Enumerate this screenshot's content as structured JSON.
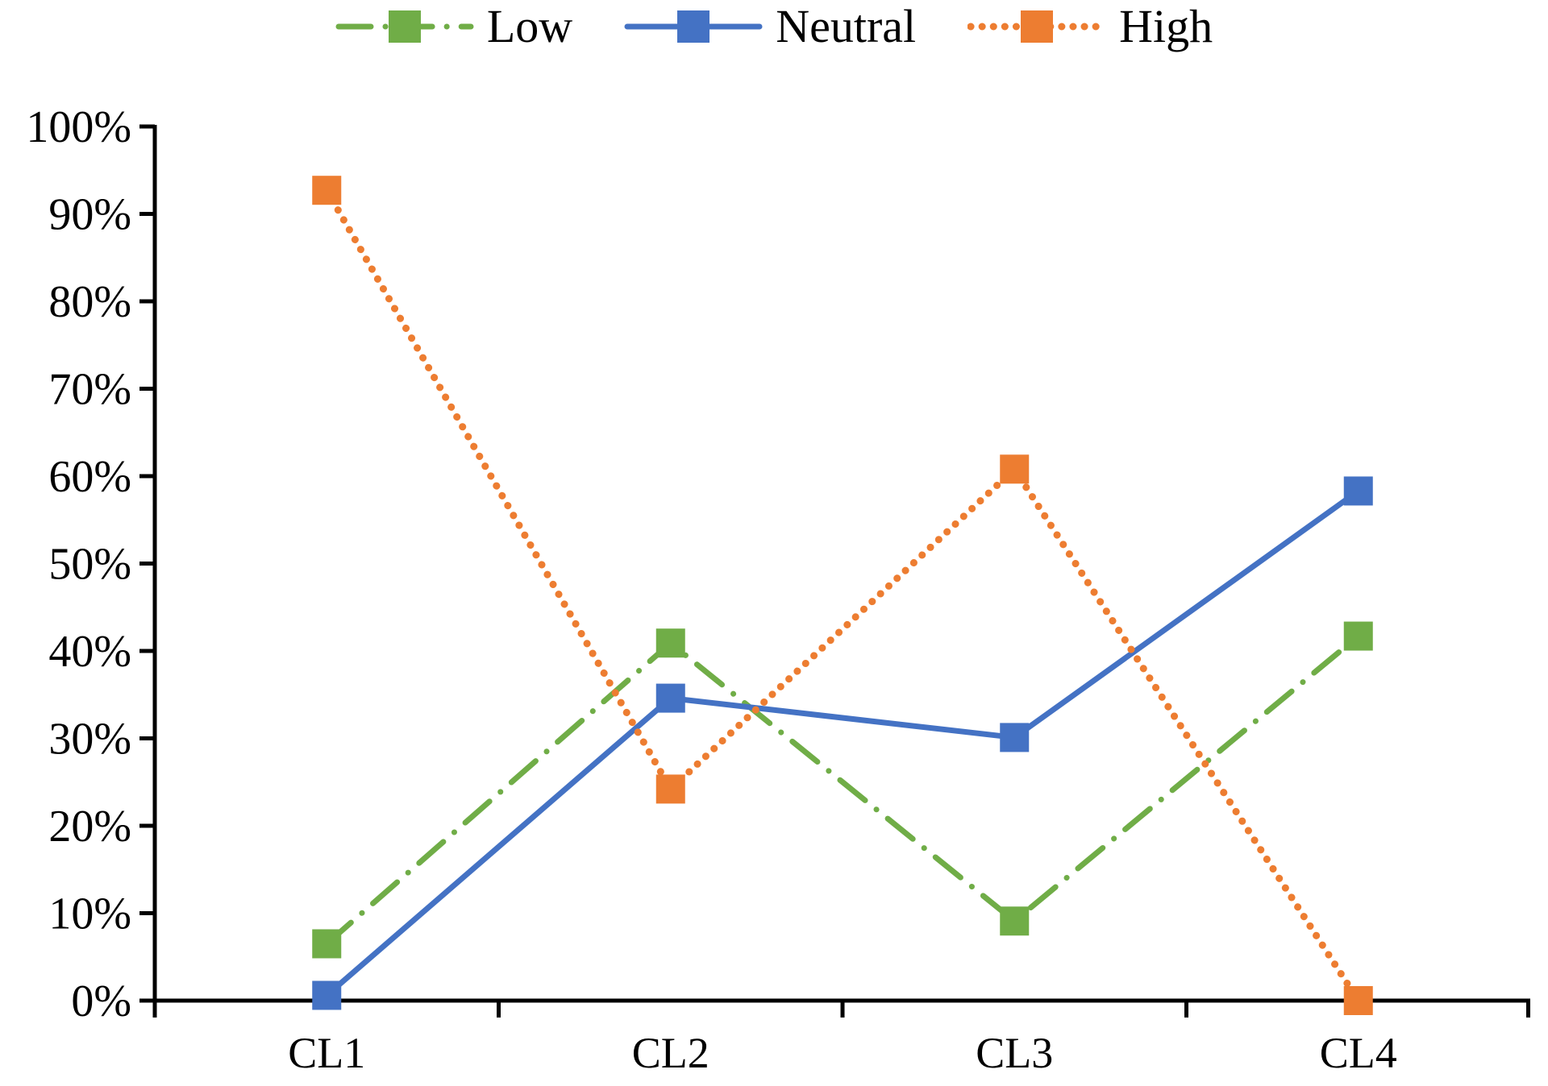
{
  "chart_data": {
    "type": "line",
    "title": "",
    "xlabel": "",
    "ylabel": "",
    "categories": [
      "CL1",
      "CL2",
      "CL3",
      "CL4"
    ],
    "series": [
      {
        "name": "Low",
        "color": "#70AD47",
        "line_style": "dash-dot",
        "marker": "square",
        "values": [
          6.5,
          40.9,
          9.1,
          41.7
        ]
      },
      {
        "name": "Neutral",
        "color": "#4472C4",
        "line_style": "solid",
        "marker": "square",
        "values": [
          0.6,
          34.6,
          30.1,
          58.3
        ]
      },
      {
        "name": "High",
        "color": "#ED7D31",
        "line_style": "dotted",
        "marker": "square",
        "values": [
          92.7,
          24.2,
          60.8,
          0.0
        ]
      }
    ],
    "ylim": [
      0,
      100
    ],
    "ytick_step": 10,
    "ytick_labels": [
      "0%",
      "10%",
      "20%",
      "30%",
      "40%",
      "50%",
      "60%",
      "70%",
      "80%",
      "90%",
      "100%"
    ],
    "grid": false,
    "legend_position": "top-center",
    "axis_color": "#000000",
    "text_color": "#000000"
  }
}
